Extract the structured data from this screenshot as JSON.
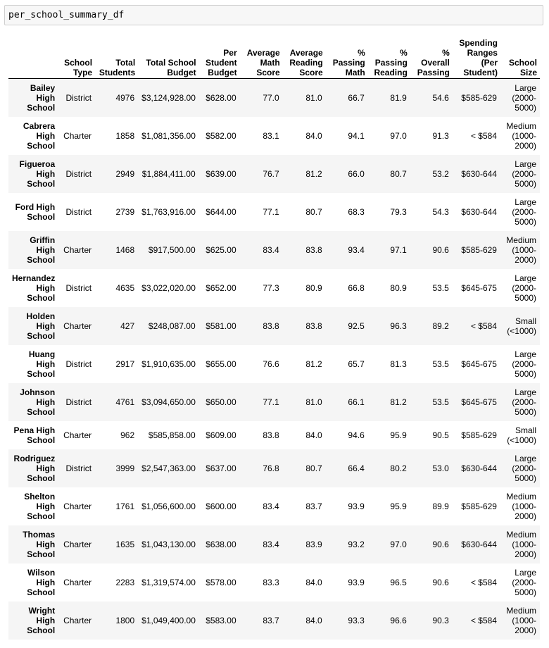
{
  "input_cell": {
    "code": "per_school_summary_df"
  },
  "table": {
    "index_header": "",
    "columns": [
      "School Type",
      "Total Students",
      "Total School Budget",
      "Per Student Budget",
      "Average Math Score",
      "Average Reading Score",
      "% Passing Math",
      "% Passing Reading",
      "% Overall Passing",
      "Spending Ranges (Per Student)",
      "School Size"
    ],
    "rows": [
      {
        "name": "Bailey High School",
        "cells": [
          "District",
          "4976",
          "$3,124,928.00",
          "$628.00",
          "77.0",
          "81.0",
          "66.7",
          "81.9",
          "54.6",
          "$585-629",
          "Large (2000-5000)"
        ]
      },
      {
        "name": "Cabrera High School",
        "cells": [
          "Charter",
          "1858",
          "$1,081,356.00",
          "$582.00",
          "83.1",
          "84.0",
          "94.1",
          "97.0",
          "91.3",
          "< $584",
          "Medium (1000-2000)"
        ]
      },
      {
        "name": "Figueroa High School",
        "cells": [
          "District",
          "2949",
          "$1,884,411.00",
          "$639.00",
          "76.7",
          "81.2",
          "66.0",
          "80.7",
          "53.2",
          "$630-644",
          "Large (2000-5000)"
        ]
      },
      {
        "name": "Ford High School",
        "cells": [
          "District",
          "2739",
          "$1,763,916.00",
          "$644.00",
          "77.1",
          "80.7",
          "68.3",
          "79.3",
          "54.3",
          "$630-644",
          "Large (2000-5000)"
        ]
      },
      {
        "name": "Griffin High School",
        "cells": [
          "Charter",
          "1468",
          "$917,500.00",
          "$625.00",
          "83.4",
          "83.8",
          "93.4",
          "97.1",
          "90.6",
          "$585-629",
          "Medium (1000-2000)"
        ]
      },
      {
        "name": "Hernandez High School",
        "cells": [
          "District",
          "4635",
          "$3,022,020.00",
          "$652.00",
          "77.3",
          "80.9",
          "66.8",
          "80.9",
          "53.5",
          "$645-675",
          "Large (2000-5000)"
        ]
      },
      {
        "name": "Holden High School",
        "cells": [
          "Charter",
          "427",
          "$248,087.00",
          "$581.00",
          "83.8",
          "83.8",
          "92.5",
          "96.3",
          "89.2",
          "< $584",
          "Small (<1000)"
        ]
      },
      {
        "name": "Huang High School",
        "cells": [
          "District",
          "2917",
          "$1,910,635.00",
          "$655.00",
          "76.6",
          "81.2",
          "65.7",
          "81.3",
          "53.5",
          "$645-675",
          "Large (2000-5000)"
        ]
      },
      {
        "name": "Johnson High School",
        "cells": [
          "District",
          "4761",
          "$3,094,650.00",
          "$650.00",
          "77.1",
          "81.0",
          "66.1",
          "81.2",
          "53.5",
          "$645-675",
          "Large (2000-5000)"
        ]
      },
      {
        "name": "Pena High School",
        "cells": [
          "Charter",
          "962",
          "$585,858.00",
          "$609.00",
          "83.8",
          "84.0",
          "94.6",
          "95.9",
          "90.5",
          "$585-629",
          "Small (<1000)"
        ]
      },
      {
        "name": "Rodriguez High School",
        "cells": [
          "District",
          "3999",
          "$2,547,363.00",
          "$637.00",
          "76.8",
          "80.7",
          "66.4",
          "80.2",
          "53.0",
          "$630-644",
          "Large (2000-5000)"
        ]
      },
      {
        "name": "Shelton High School",
        "cells": [
          "Charter",
          "1761",
          "$1,056,600.00",
          "$600.00",
          "83.4",
          "83.7",
          "93.9",
          "95.9",
          "89.9",
          "$585-629",
          "Medium (1000-2000)"
        ]
      },
      {
        "name": "Thomas High School",
        "cells": [
          "Charter",
          "1635",
          "$1,043,130.00",
          "$638.00",
          "83.4",
          "83.9",
          "93.2",
          "97.0",
          "90.6",
          "$630-644",
          "Medium (1000-2000)"
        ]
      },
      {
        "name": "Wilson High School",
        "cells": [
          "Charter",
          "2283",
          "$1,319,574.00",
          "$578.00",
          "83.3",
          "84.0",
          "93.9",
          "96.5",
          "90.6",
          "< $584",
          "Large (2000-5000)"
        ]
      },
      {
        "name": "Wright High School",
        "cells": [
          "Charter",
          "1800",
          "$1,049,400.00",
          "$583.00",
          "83.7",
          "84.0",
          "93.3",
          "96.6",
          "90.3",
          "< $584",
          "Medium (1000-2000)"
        ]
      }
    ]
  }
}
